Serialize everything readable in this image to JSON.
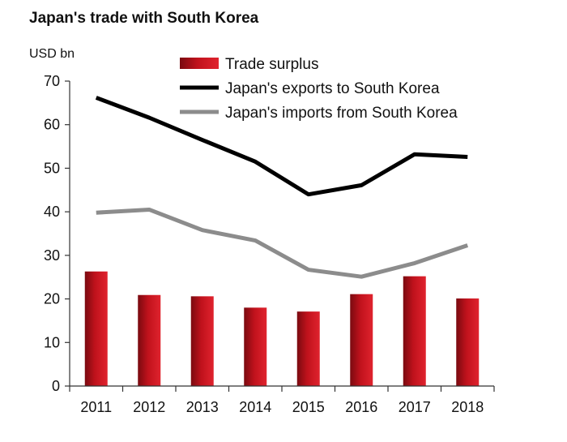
{
  "chart_data": {
    "type": "bar+line",
    "title": "Japan's trade with South Korea",
    "unit_label": "USD bn",
    "categories": [
      "2011",
      "2012",
      "2013",
      "2014",
      "2015",
      "2016",
      "2017",
      "2018"
    ],
    "ylim": [
      0,
      70
    ],
    "yticks": [
      0,
      10,
      20,
      30,
      40,
      50,
      60,
      70
    ],
    "grid": false,
    "legend_position": "top-right",
    "series": [
      {
        "name": "Trade surplus",
        "kind": "bar",
        "color": "#c0121c",
        "values": [
          26.3,
          20.9,
          20.6,
          18.0,
          17.1,
          21.1,
          25.2,
          20.1
        ]
      },
      {
        "name": "Japan's exports to South Korea",
        "kind": "line",
        "color": "#000000",
        "values": [
          66.2,
          61.6,
          56.5,
          51.5,
          44.0,
          46.1,
          53.2,
          52.6
        ]
      },
      {
        "name": "Japan's imports from South Korea",
        "kind": "line",
        "color": "#8c8c8c",
        "values": [
          39.8,
          40.5,
          35.8,
          33.4,
          26.7,
          25.1,
          28.2,
          32.3
        ]
      }
    ]
  }
}
